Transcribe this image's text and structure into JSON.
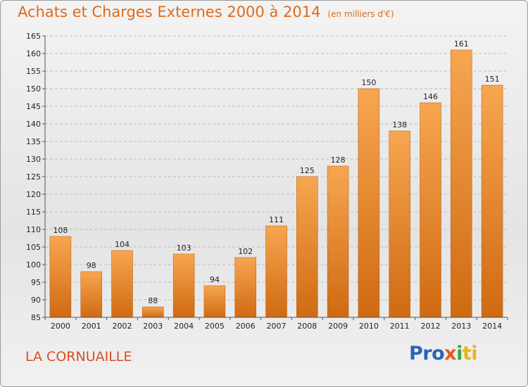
{
  "header": {
    "title": "Achats et Charges Externes 2000 à 2014",
    "unit": "(en milliers d'€)"
  },
  "footer": {
    "place": "LA CORNUAILLE",
    "logo": [
      "Pro",
      "x",
      "i",
      "ti"
    ]
  },
  "colors": {
    "bar_top": "#f7a650",
    "bar_bottom": "#cf6a12",
    "title": "#e06a1a",
    "place": "#d5501f"
  },
  "chart_data": {
    "type": "bar",
    "title": "Achats et Charges Externes 2000 à 2014",
    "subtitle": "(en milliers d'€)",
    "categories": [
      "2000",
      "2001",
      "2002",
      "2003",
      "2004",
      "2005",
      "2006",
      "2007",
      "2008",
      "2009",
      "2010",
      "2011",
      "2012",
      "2013",
      "2014"
    ],
    "values": [
      108,
      98,
      104,
      88,
      103,
      94,
      102,
      111,
      125,
      128,
      150,
      138,
      146,
      161,
      151
    ],
    "ylim": [
      85,
      165
    ],
    "yticks": [
      85,
      90,
      95,
      100,
      105,
      110,
      115,
      120,
      125,
      130,
      135,
      140,
      145,
      150,
      155,
      160,
      165
    ],
    "grid": true,
    "legend": "none"
  }
}
